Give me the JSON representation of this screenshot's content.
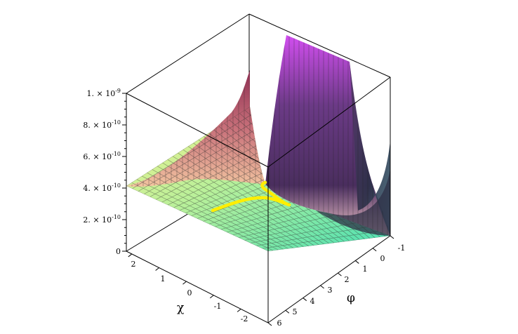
{
  "chart_data": {
    "type": "surface3d",
    "title": "",
    "xlabel": "χ",
    "ylabel": "φ",
    "zlabel": "",
    "x_range": [
      -2.5,
      2.5
    ],
    "y_range": [
      -1,
      6
    ],
    "z_range": [
      0,
      1e-09
    ],
    "x_ticks": [
      "2",
      "1",
      "0",
      "-1",
      "-2"
    ],
    "y_ticks": [
      "-1",
      "0",
      "1",
      "2",
      "3",
      "4",
      "5",
      "6"
    ],
    "z_ticks": [
      {
        "mant": "1. × 10",
        "exp": "-9",
        "value": 1e-09
      },
      {
        "mant": "8. × 10",
        "exp": "-10",
        "value": 8e-10
      },
      {
        "mant": "6. × 10",
        "exp": "-10",
        "value": 6e-10
      },
      {
        "mant": "4. × 10",
        "exp": "-10",
        "value": 4e-10
      },
      {
        "mant": "2. × 10",
        "exp": "-10",
        "value": 2e-10
      },
      {
        "mant": "0",
        "exp": "",
        "value": 0
      }
    ],
    "surface_colors": {
      "low": "#5de8a8",
      "mid_low": "#f2f08a",
      "mid": "#e8a58e",
      "mid_high": "#a3405c",
      "high": "#6b2f66",
      "peak": "#d94cf0",
      "shadow": "#2e2f45"
    },
    "curve_color": "#ffee00",
    "grid": true
  }
}
